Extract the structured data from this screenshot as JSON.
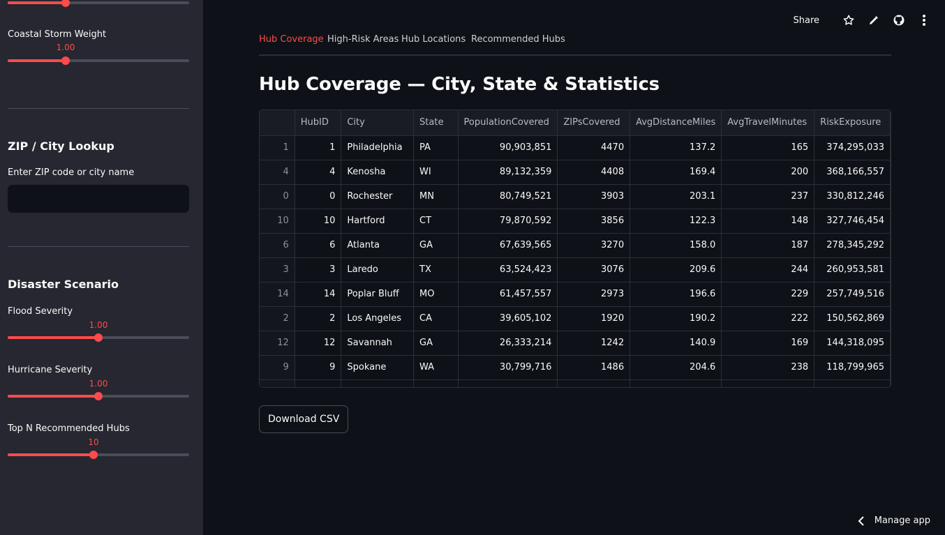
{
  "sidebar": {
    "coastal_storm": {
      "label": "Coastal Storm Weight",
      "value": "1.00",
      "fraction": 0.32
    },
    "zip_lookup": {
      "heading": "ZIP / City Lookup",
      "input_label": "Enter ZIP code or city name",
      "input_value": "",
      "placeholder": ""
    },
    "disaster": {
      "heading": "Disaster Scenario",
      "flood": {
        "label": "Flood Severity",
        "value": "1.00",
        "fraction": 0.5
      },
      "hurricane": {
        "label": "Hurricane Severity",
        "value": "1.00",
        "fraction": 0.5
      },
      "top_n": {
        "label": "Top N Recommended Hubs",
        "value": "10",
        "fraction": 0.47
      }
    }
  },
  "toolbar": {
    "share_label": "Share",
    "icons": [
      "star-icon",
      "edit-icon",
      "github-icon",
      "more-icon"
    ]
  },
  "tabs": [
    "Hub Coverage",
    "High-Risk Areas",
    "Hub Locations",
    "Recommended Hubs"
  ],
  "active_tab": 0,
  "main": {
    "title": "Hub Coverage — City, State & Statistics",
    "download_label": "Download CSV"
  },
  "table": {
    "columns": [
      "",
      "HubID",
      "City",
      "State",
      "PopulationCovered",
      "ZIPsCovered",
      "AvgDistanceMiles",
      "AvgTravelMinutes",
      "RiskExposure"
    ],
    "rows": [
      [
        "1",
        "1",
        "Philadelphia",
        "PA",
        "90,903,851",
        "4470",
        "137.2",
        "165",
        "374,295,033"
      ],
      [
        "4",
        "4",
        "Kenosha",
        "WI",
        "89,132,359",
        "4408",
        "169.4",
        "200",
        "368,166,557"
      ],
      [
        "0",
        "0",
        "Rochester",
        "MN",
        "80,749,521",
        "3903",
        "203.1",
        "237",
        "330,812,246"
      ],
      [
        "10",
        "10",
        "Hartford",
        "CT",
        "79,870,592",
        "3856",
        "122.3",
        "148",
        "327,746,454"
      ],
      [
        "6",
        "6",
        "Atlanta",
        "GA",
        "67,639,565",
        "3270",
        "158.0",
        "187",
        "278,345,292"
      ],
      [
        "3",
        "3",
        "Laredo",
        "TX",
        "63,524,423",
        "3076",
        "209.6",
        "244",
        "260,953,581"
      ],
      [
        "14",
        "14",
        "Poplar Bluff",
        "MO",
        "61,457,557",
        "2973",
        "196.6",
        "229",
        "257,749,516"
      ],
      [
        "2",
        "2",
        "Los Angeles",
        "CA",
        "39,605,102",
        "1920",
        "190.2",
        "222",
        "150,562,869"
      ],
      [
        "12",
        "12",
        "Savannah",
        "GA",
        "26,333,214",
        "1242",
        "140.9",
        "169",
        "144,318,095"
      ],
      [
        "9",
        "9",
        "Spokane",
        "WA",
        "30,799,716",
        "1486",
        "204.6",
        "238",
        "118,799,965"
      ]
    ]
  },
  "footer": {
    "manage_label": "Manage app"
  },
  "colors": {
    "accent": "#ff4b4b",
    "background": "#0e1117",
    "sidebar": "#262730"
  }
}
